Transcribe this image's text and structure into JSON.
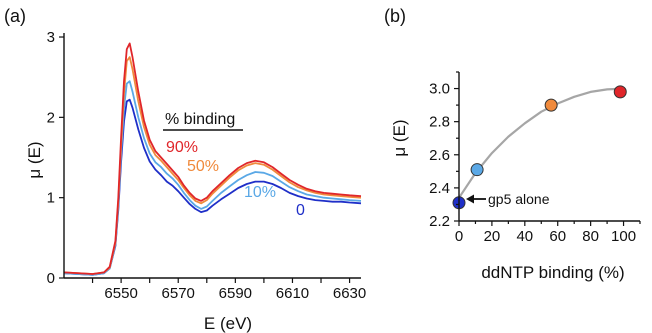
{
  "chart_data": [
    {
      "panel_label": "(a)",
      "type": "line",
      "xlabel": "E (eV)",
      "ylabel": "μ (E)",
      "xlim": [
        6530,
        6634
      ],
      "ylim": [
        0,
        3.05
      ],
      "x_ticks": [
        6550,
        6570,
        6590,
        6610,
        6630
      ],
      "y_ticks": [
        0,
        1,
        2,
        3
      ],
      "legend_title": "% binding",
      "series": [
        {
          "name": "0",
          "color": "#1f2fc8",
          "x": [
            6530,
            6540,
            6544,
            6546,
            6548,
            6549,
            6550,
            6551,
            6552,
            6553,
            6554,
            6556,
            6558,
            6560,
            6562,
            6564,
            6566,
            6568,
            6570,
            6572,
            6574,
            6576,
            6578,
            6580,
            6582,
            6585,
            6588,
            6591,
            6594,
            6597,
            6600,
            6603,
            6606,
            6609,
            6612,
            6615,
            6618,
            6621,
            6624,
            6627,
            6630,
            6634
          ],
          "y": [
            0.06,
            0.04,
            0.06,
            0.12,
            0.4,
            0.85,
            1.45,
            1.95,
            2.2,
            2.22,
            2.12,
            1.85,
            1.62,
            1.45,
            1.35,
            1.28,
            1.2,
            1.15,
            1.08,
            1.0,
            0.92,
            0.86,
            0.82,
            0.84,
            0.9,
            0.98,
            1.05,
            1.12,
            1.17,
            1.2,
            1.2,
            1.17,
            1.12,
            1.06,
            1.02,
            0.99,
            0.97,
            0.96,
            0.95,
            0.95,
            0.94,
            0.93
          ]
        },
        {
          "name": "10%",
          "color": "#5aa8e6",
          "x": [
            6530,
            6540,
            6544,
            6546,
            6548,
            6549,
            6550,
            6551,
            6552,
            6553,
            6554,
            6556,
            6558,
            6560,
            6562,
            6564,
            6566,
            6568,
            6570,
            6572,
            6574,
            6576,
            6578,
            6580,
            6582,
            6585,
            6588,
            6591,
            6594,
            6597,
            6600,
            6603,
            6606,
            6609,
            6612,
            6615,
            6618,
            6621,
            6624,
            6627,
            6630,
            6634
          ],
          "y": [
            0.06,
            0.04,
            0.06,
            0.12,
            0.42,
            0.9,
            1.55,
            2.12,
            2.42,
            2.45,
            2.32,
            2.0,
            1.74,
            1.55,
            1.44,
            1.38,
            1.3,
            1.24,
            1.16,
            1.06,
            0.97,
            0.9,
            0.86,
            0.89,
            0.96,
            1.06,
            1.14,
            1.22,
            1.28,
            1.32,
            1.31,
            1.27,
            1.2,
            1.13,
            1.08,
            1.04,
            1.02,
            1.0,
            0.99,
            0.98,
            0.97,
            0.96
          ]
        },
        {
          "name": "50%",
          "color": "#f08a3c",
          "x": [
            6530,
            6540,
            6544,
            6546,
            6548,
            6549,
            6550,
            6551,
            6552,
            6553,
            6554,
            6556,
            6558,
            6560,
            6562,
            6564,
            6566,
            6568,
            6570,
            6572,
            6574,
            6576,
            6578,
            6580,
            6582,
            6585,
            6588,
            6591,
            6594,
            6597,
            6600,
            6603,
            6606,
            6609,
            6612,
            6615,
            6618,
            6621,
            6624,
            6627,
            6630,
            6634
          ],
          "y": [
            0.07,
            0.05,
            0.07,
            0.13,
            0.44,
            0.95,
            1.65,
            2.3,
            2.7,
            2.75,
            2.6,
            2.2,
            1.88,
            1.66,
            1.53,
            1.46,
            1.38,
            1.3,
            1.22,
            1.12,
            1.03,
            0.96,
            0.93,
            0.97,
            1.05,
            1.15,
            1.25,
            1.34,
            1.4,
            1.43,
            1.41,
            1.35,
            1.27,
            1.19,
            1.13,
            1.09,
            1.06,
            1.04,
            1.03,
            1.02,
            1.01,
            1.0
          ]
        },
        {
          "name": "90%",
          "color": "#e0262a",
          "x": [
            6530,
            6540,
            6544,
            6546,
            6548,
            6549,
            6550,
            6551,
            6552,
            6553,
            6554,
            6556,
            6558,
            6560,
            6562,
            6564,
            6566,
            6568,
            6570,
            6572,
            6574,
            6576,
            6578,
            6580,
            6582,
            6585,
            6588,
            6591,
            6594,
            6597,
            6600,
            6603,
            6606,
            6609,
            6612,
            6615,
            6618,
            6621,
            6624,
            6627,
            6630,
            6634
          ],
          "y": [
            0.07,
            0.05,
            0.07,
            0.14,
            0.46,
            1.0,
            1.75,
            2.45,
            2.85,
            2.92,
            2.75,
            2.32,
            1.96,
            1.72,
            1.58,
            1.5,
            1.42,
            1.34,
            1.26,
            1.15,
            1.06,
            0.99,
            0.96,
            1.0,
            1.08,
            1.18,
            1.28,
            1.37,
            1.43,
            1.46,
            1.44,
            1.38,
            1.3,
            1.22,
            1.16,
            1.11,
            1.08,
            1.06,
            1.05,
            1.04,
            1.03,
            1.02
          ]
        }
      ]
    },
    {
      "panel_label": "(b)",
      "type": "scatter",
      "xlabel": "ddNTP binding (%)",
      "ylabel": "μ (E)",
      "xlim": [
        0,
        110
      ],
      "ylim": [
        2.2,
        3.1
      ],
      "x_ticks": [
        0,
        20,
        40,
        60,
        80,
        100
      ],
      "y_ticks": [
        2.2,
        2.4,
        2.6,
        2.8,
        3.0
      ],
      "annotation": "gp5 alone",
      "points": [
        {
          "x": 0,
          "y": 2.31,
          "color": "#1f2fc8"
        },
        {
          "x": 11,
          "y": 2.51,
          "color": "#5aa8e6"
        },
        {
          "x": 56,
          "y": 2.9,
          "color": "#f08a3c"
        },
        {
          "x": 98,
          "y": 2.98,
          "color": "#e0262a"
        }
      ],
      "fit_curve": {
        "color": "#a6a6a6",
        "x": [
          0,
          10,
          20,
          30,
          40,
          50,
          60,
          70,
          80,
          90,
          100
        ],
        "y": [
          2.34,
          2.49,
          2.61,
          2.71,
          2.79,
          2.86,
          2.91,
          2.95,
          2.98,
          2.995,
          3.0
        ]
      }
    }
  ]
}
